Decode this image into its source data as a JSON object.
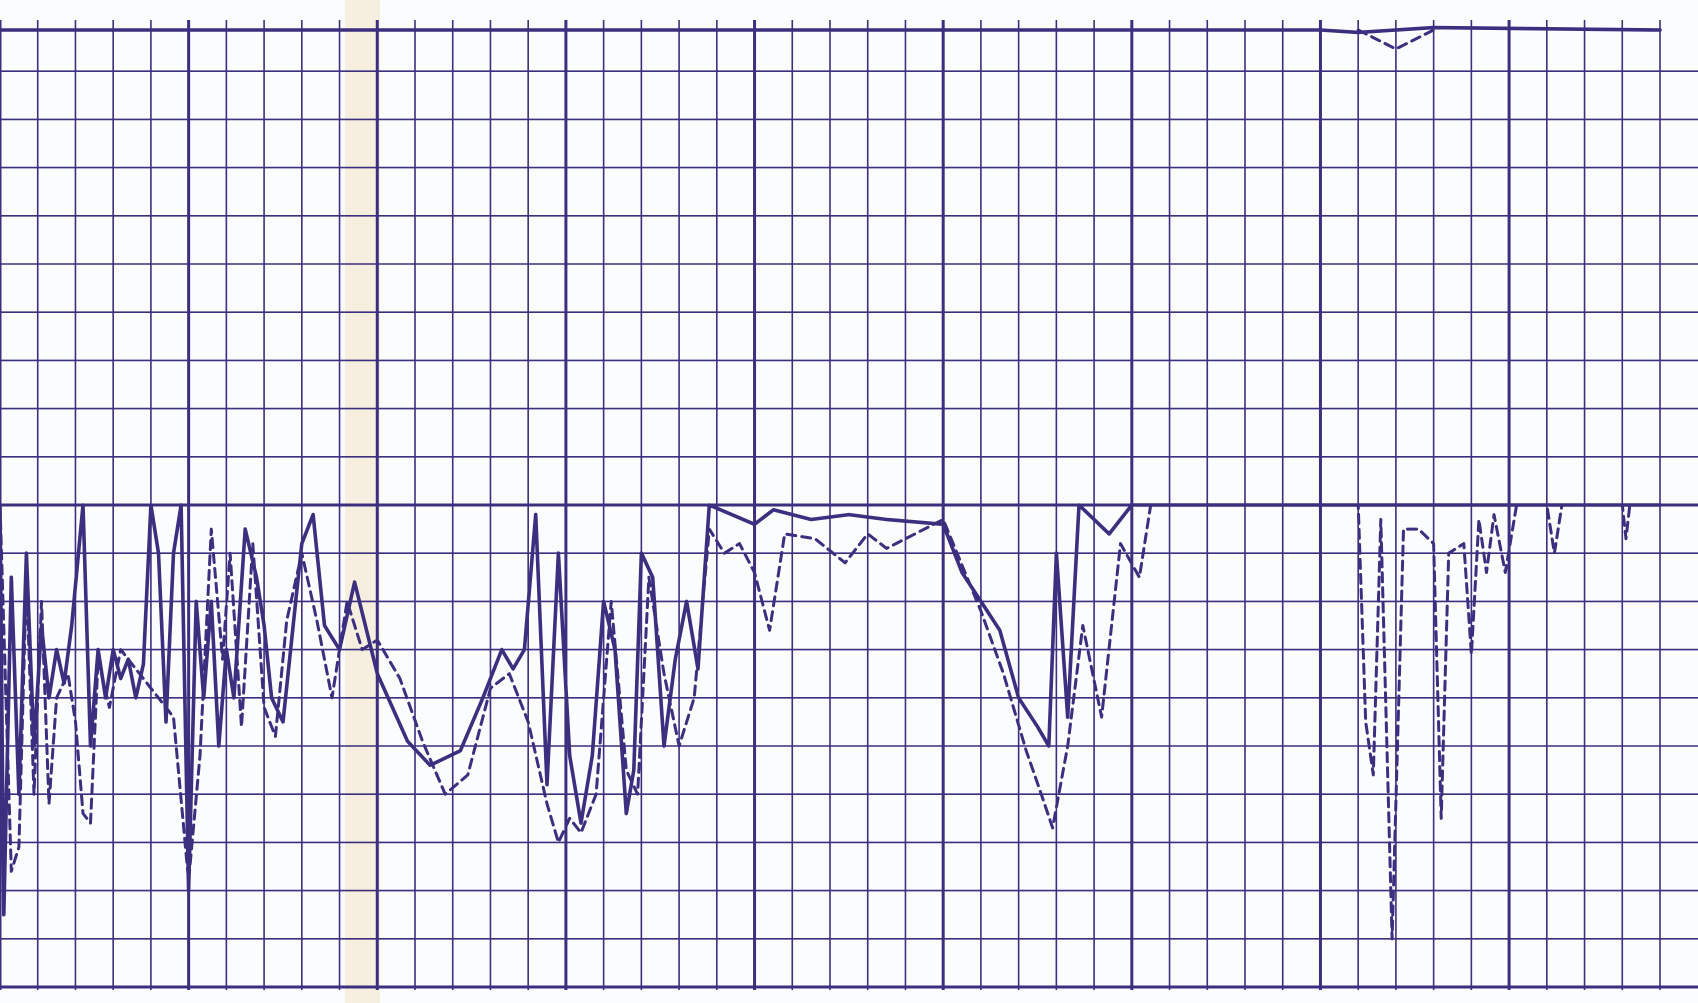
{
  "colors": {
    "ink": "#3c2f7f",
    "paper": "#fbfcfd",
    "seam": "#f6efdf"
  },
  "chart_data": [
    {
      "type": "line",
      "title": "",
      "xlabel": "",
      "ylabel": "",
      "grid": true,
      "xlim": [
        0,
        44
      ],
      "ylim": [
        0,
        20
      ],
      "grid_minor_x": 1,
      "grid_major_x": 5,
      "grid_minor_y": 1,
      "grid_major_y": 10,
      "series": [
        {
          "style": "solid",
          "points": [
            [
              0,
              20
            ],
            [
              35,
              20
            ],
            [
              36,
              19.9
            ],
            [
              37,
              20
            ],
            [
              38,
              20.1
            ],
            [
              44,
              20
            ]
          ]
        },
        {
          "style": "dashed",
          "points": [
            [
              36,
              20
            ],
            [
              37,
              19.2
            ],
            [
              38,
              20
            ]
          ]
        }
      ]
    },
    {
      "type": "line",
      "title": "",
      "xlabel": "",
      "ylabel": "",
      "grid": true,
      "xlim": [
        0,
        44
      ],
      "ylim": [
        0,
        10
      ],
      "grid_minor_x": 1,
      "grid_major_x": 5,
      "grid_minor_y": 1,
      "grid_major_y": 10,
      "series": [
        {
          "style": "solid",
          "points": [
            [
              0,
              10
            ],
            [
              0.1,
              1.5
            ],
            [
              0.3,
              8.5
            ],
            [
              0.5,
              4
            ],
            [
              0.7,
              9
            ],
            [
              0.9,
              5
            ],
            [
              1.1,
              7.5
            ],
            [
              1.3,
              6
            ],
            [
              1.5,
              7
            ],
            [
              1.7,
              6.3
            ],
            [
              1.9,
              7.5
            ],
            [
              2.2,
              10
            ],
            [
              2.4,
              5
            ],
            [
              2.6,
              7
            ],
            [
              2.8,
              6
            ],
            [
              3.0,
              7
            ],
            [
              3.2,
              6.4
            ],
            [
              3.4,
              6.8
            ],
            [
              3.6,
              6
            ],
            [
              3.8,
              6.7
            ],
            [
              4.0,
              10
            ],
            [
              4.2,
              9
            ],
            [
              4.4,
              5.5
            ],
            [
              4.6,
              9
            ],
            [
              4.8,
              10
            ],
            [
              5.0,
              2
            ],
            [
              5.2,
              8
            ],
            [
              5.4,
              6
            ],
            [
              5.6,
              8
            ],
            [
              5.8,
              5
            ],
            [
              6.0,
              7
            ],
            [
              6.2,
              6
            ],
            [
              6.5,
              9.5
            ],
            [
              6.8,
              8.5
            ],
            [
              7.0,
              7.5
            ],
            [
              7.2,
              6
            ],
            [
              7.5,
              5.5
            ],
            [
              8.0,
              9.2
            ],
            [
              8.3,
              9.8
            ],
            [
              8.6,
              7.5
            ],
            [
              9.0,
              7
            ],
            [
              9.4,
              8.4
            ],
            [
              10.0,
              6.5
            ],
            [
              10.8,
              5.1
            ],
            [
              11.4,
              4.6
            ],
            [
              12.2,
              4.9
            ],
            [
              12.8,
              6.0
            ],
            [
              13.3,
              7.0
            ],
            [
              13.6,
              6.6
            ],
            [
              13.9,
              7.0
            ],
            [
              14.2,
              9.8
            ],
            [
              14.5,
              4.2
            ],
            [
              14.8,
              9.0
            ],
            [
              15.1,
              4.8
            ],
            [
              15.4,
              3.4
            ],
            [
              15.7,
              4.8
            ],
            [
              16.0,
              8.0
            ],
            [
              16.3,
              7.0
            ],
            [
              16.6,
              3.6
            ],
            [
              16.8,
              4.5
            ],
            [
              17.0,
              9.0
            ],
            [
              17.3,
              8.5
            ],
            [
              17.6,
              5.0
            ],
            [
              17.9,
              6.8
            ],
            [
              18.2,
              8.0
            ],
            [
              18.5,
              6.6
            ],
            [
              18.8,
              10
            ],
            [
              20.0,
              9.6
            ],
            [
              20.5,
              9.9
            ],
            [
              21.5,
              9.7
            ],
            [
              22.5,
              9.8
            ],
            [
              23.5,
              9.7
            ],
            [
              25.0,
              9.6
            ],
            [
              25.5,
              8.6
            ],
            [
              26.0,
              8.0
            ],
            [
              26.5,
              7.4
            ],
            [
              27.0,
              6.0
            ],
            [
              27.5,
              5.4
            ],
            [
              27.8,
              5.0
            ],
            [
              28.0,
              9.0
            ],
            [
              28.3,
              5.6
            ],
            [
              28.6,
              10
            ],
            [
              29.4,
              9.4
            ],
            [
              30.0,
              10
            ],
            [
              36,
              10
            ],
            [
              37,
              10
            ],
            [
              38,
              10
            ],
            [
              44,
              10
            ]
          ]
        },
        {
          "style": "dashed",
          "points": [
            [
              0,
              10
            ],
            [
              0.3,
              2.4
            ],
            [
              0.5,
              2.9
            ],
            [
              0.7,
              8.5
            ],
            [
              0.9,
              4.0
            ],
            [
              1.1,
              8.0
            ],
            [
              1.3,
              3.8
            ],
            [
              1.5,
              6.0
            ],
            [
              1.8,
              6.5
            ],
            [
              2.0,
              5.5
            ],
            [
              2.2,
              3.6
            ],
            [
              2.4,
              3.4
            ],
            [
              2.6,
              6.8
            ],
            [
              2.9,
              5.8
            ],
            [
              3.2,
              7.0
            ],
            [
              4.6,
              5.6
            ],
            [
              5.0,
              2.2
            ],
            [
              5.3,
              4.8
            ],
            [
              5.6,
              9.5
            ],
            [
              5.9,
              6.8
            ],
            [
              6.1,
              9.0
            ],
            [
              6.4,
              5.4
            ],
            [
              6.7,
              9.2
            ],
            [
              7.0,
              5.8
            ],
            [
              7.3,
              5.2
            ],
            [
              7.6,
              7.6
            ],
            [
              8.0,
              9.0
            ],
            [
              8.4,
              7.6
            ],
            [
              8.8,
              6.0
            ],
            [
              9.2,
              8.0
            ],
            [
              9.6,
              7.0
            ],
            [
              10.0,
              7.2
            ],
            [
              10.6,
              6.4
            ],
            [
              11.2,
              5.1
            ],
            [
              11.8,
              4.0
            ],
            [
              12.4,
              4.4
            ],
            [
              13.0,
              6.2
            ],
            [
              13.5,
              6.5
            ],
            [
              14.0,
              5.5
            ],
            [
              14.5,
              3.8
            ],
            [
              14.8,
              3.0
            ],
            [
              15.1,
              3.5
            ],
            [
              15.4,
              3.2
            ],
            [
              15.8,
              4.0
            ],
            [
              16.2,
              8.0
            ],
            [
              16.6,
              4.5
            ],
            [
              16.9,
              4.0
            ],
            [
              17.2,
              8.5
            ],
            [
              17.6,
              6.5
            ],
            [
              18.0,
              5.0
            ],
            [
              18.4,
              6.0
            ],
            [
              18.8,
              9.5
            ],
            [
              19.2,
              9.0
            ],
            [
              19.6,
              9.2
            ],
            [
              20.0,
              8.6
            ],
            [
              20.4,
              7.4
            ],
            [
              20.8,
              9.4
            ],
            [
              21.6,
              9.3
            ],
            [
              22.4,
              8.8
            ],
            [
              23.0,
              9.4
            ],
            [
              23.5,
              9.1
            ],
            [
              25.0,
              9.7
            ],
            [
              26.0,
              7.8
            ],
            [
              26.6,
              6.5
            ],
            [
              27.2,
              4.9
            ],
            [
              27.6,
              4.0
            ],
            [
              27.9,
              3.3
            ],
            [
              28.3,
              5.0
            ],
            [
              28.7,
              7.5
            ],
            [
              29.2,
              5.6
            ],
            [
              29.7,
              9.2
            ],
            [
              30.2,
              8.5
            ],
            [
              30.5,
              10
            ],
            [
              36.0,
              10
            ],
            [
              36.2,
              5.5
            ],
            [
              36.4,
              4.4
            ],
            [
              36.6,
              9.7
            ],
            [
              36.9,
              1.0
            ],
            [
              37.2,
              9.5
            ],
            [
              37.6,
              9.5
            ],
            [
              38.0,
              9.2
            ],
            [
              38.2,
              3.5
            ],
            [
              38.4,
              9.0
            ],
            [
              38.8,
              9.2
            ],
            [
              39.0,
              6.9
            ],
            [
              39.2,
              9.7
            ],
            [
              39.4,
              8.6
            ],
            [
              39.6,
              9.8
            ],
            [
              39.9,
              8.6
            ],
            [
              40.2,
              10
            ],
            [
              41.0,
              10
            ],
            [
              41.2,
              9.0
            ],
            [
              41.4,
              10
            ],
            [
              43.0,
              10
            ],
            [
              43.1,
              9.3
            ],
            [
              43.2,
              10
            ],
            [
              44,
              10
            ]
          ]
        }
      ]
    }
  ]
}
